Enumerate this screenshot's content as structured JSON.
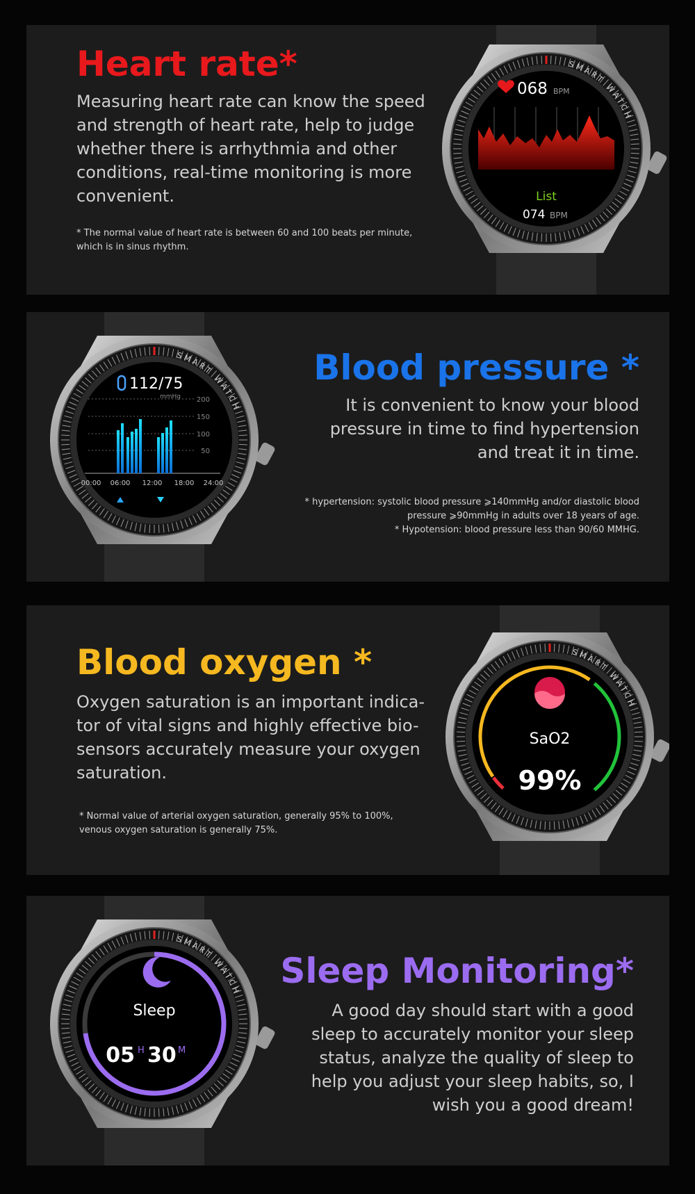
{
  "watch_label": "SMART WATCH",
  "sections": [
    {
      "title": "Heart rate*",
      "body": [
        "Measuring heart rate can know the speed",
        "and strength of heart rate, help to judge",
        "whether there is arrhythmia and other",
        "conditions, real-time monitoring is more",
        "convenient."
      ],
      "note": [
        "* The normal value of heart rate is between 60 and 100 beats per minute,",
        "which is in sinus rhythm."
      ],
      "screen": {
        "bpm": "068",
        "unit": "BPM",
        "list_label": "List",
        "list_value": "074",
        "list_unit": "BPM"
      }
    },
    {
      "title": "Blood pressure *",
      "body": [
        "It is convenient to know your blood",
        "pressure in time to find hypertension",
        "and treat it in time."
      ],
      "note": [
        "* hypertension: systolic blood pressure ⩾140mmHg and/or diastolic blood",
        "pressure ⩾90mmHg in adults over 18 years of age.",
        "* Hypotension: blood pressure less than 90/60 MMHG."
      ],
      "screen": {
        "reading": "112/75",
        "unit": "mmHg",
        "y_labels": [
          "200",
          "150",
          "100",
          "50"
        ],
        "x_labels": [
          "00:00",
          "06:00",
          "12:00",
          "18:00",
          "24:00"
        ]
      }
    },
    {
      "title": "Blood oxygen *",
      "body": [
        "Oxygen saturation is an important indica-",
        "tor of vital signs and highly effective bio-",
        "sensors accurately measure your oxygen",
        "saturation."
      ],
      "note": [
        "* Normal value of arterial oxygen saturation, generally 95% to 100%,",
        "venous oxygen saturation is generally 75%."
      ],
      "screen": {
        "label": "SaO2",
        "value": "99%"
      }
    },
    {
      "title": "Sleep Monitoring*",
      "body": [
        "A good day should start with a good",
        "sleep to accurately monitor your sleep",
        "status, analyze the quality of sleep to",
        "help you adjust your sleep habits, so, I",
        "wish you a good dream!"
      ],
      "screen": {
        "label": "Sleep",
        "hours": "05",
        "hours_unit": "H",
        "minutes": "30",
        "minutes_unit": "M"
      }
    }
  ]
}
